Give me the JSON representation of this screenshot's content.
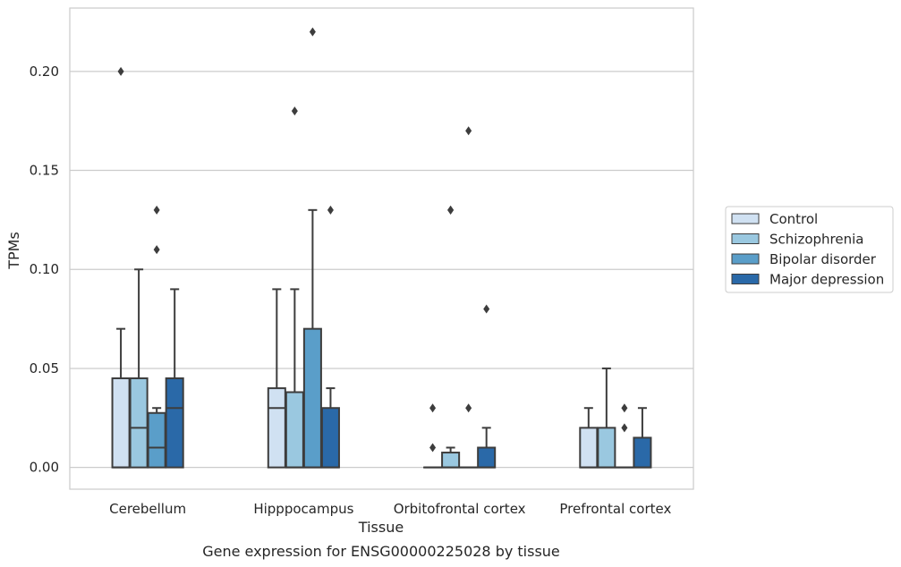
{
  "chart_data": {
    "type": "boxplot",
    "xlabel": "Tissue",
    "ylabel": "TPMs",
    "caption": "Gene expression for ENSG00000225028 by tissue",
    "ylim": [
      -0.011,
      0.232
    ],
    "yticks": [
      "0.00",
      "0.05",
      "0.10",
      "0.15",
      "0.20"
    ],
    "grid": "horizontal",
    "legend_position": "right",
    "categories": [
      "Cerebellum",
      "Hipppocampus",
      "Orbitofrontal cortex",
      "Prefrontal cortex"
    ],
    "series": [
      {
        "name": "Control",
        "color": "#d0e1f2",
        "boxes": [
          {
            "q1": 0.0,
            "median": 0.0,
            "q3": 0.045,
            "whisker_low": 0.0,
            "whisker_high": 0.07,
            "outliers": [
              0.2
            ]
          },
          {
            "q1": 0.0,
            "median": 0.03,
            "q3": 0.04,
            "whisker_low": 0.0,
            "whisker_high": 0.09,
            "outliers": []
          },
          {
            "q1": 0.0,
            "median": 0.0,
            "q3": 0.0,
            "whisker_low": 0.0,
            "whisker_high": 0.0,
            "outliers": [
              0.03,
              0.01
            ]
          },
          {
            "q1": 0.0,
            "median": 0.0,
            "q3": 0.02,
            "whisker_low": 0.0,
            "whisker_high": 0.03,
            "outliers": []
          }
        ]
      },
      {
        "name": "Schizophrenia",
        "color": "#9ac8e0",
        "boxes": [
          {
            "q1": 0.0,
            "median": 0.02,
            "q3": 0.045,
            "whisker_low": 0.0,
            "whisker_high": 0.1,
            "outliers": []
          },
          {
            "q1": 0.0,
            "median": 0.0,
            "q3": 0.038,
            "whisker_low": 0.0,
            "whisker_high": 0.09,
            "outliers": [
              0.18
            ]
          },
          {
            "q1": 0.0,
            "median": 0.0,
            "q3": 0.0075,
            "whisker_low": 0.0,
            "whisker_high": 0.01,
            "outliers": [
              0.13,
              0.13
            ]
          },
          {
            "q1": 0.0,
            "median": 0.0,
            "q3": 0.02,
            "whisker_low": 0.0,
            "whisker_high": 0.05,
            "outliers": []
          }
        ]
      },
      {
        "name": "Bipolar disorder",
        "color": "#5a9ec9",
        "boxes": [
          {
            "q1": 0.0,
            "median": 0.01,
            "q3": 0.0275,
            "whisker_low": 0.0,
            "whisker_high": 0.03,
            "outliers": [
              0.13,
              0.11
            ]
          },
          {
            "q1": 0.0,
            "median": 0.0,
            "q3": 0.07,
            "whisker_low": 0.0,
            "whisker_high": 0.13,
            "outliers": [
              0.22
            ]
          },
          {
            "q1": 0.0,
            "median": 0.0,
            "q3": 0.0,
            "whisker_low": 0.0,
            "whisker_high": 0.0,
            "outliers": [
              0.17,
              0.03
            ]
          },
          {
            "q1": 0.0,
            "median": 0.0,
            "q3": 0.0,
            "whisker_low": 0.0,
            "whisker_high": 0.0,
            "outliers": [
              0.03,
              0.02
            ]
          }
        ]
      },
      {
        "name": "Major depression",
        "color": "#2a69a8",
        "boxes": [
          {
            "q1": 0.0,
            "median": 0.03,
            "q3": 0.045,
            "whisker_low": 0.0,
            "whisker_high": 0.09,
            "outliers": []
          },
          {
            "q1": 0.0,
            "median": 0.0,
            "q3": 0.03,
            "whisker_low": 0.0,
            "whisker_high": 0.04,
            "outliers": [
              0.13
            ]
          },
          {
            "q1": 0.0,
            "median": 0.0,
            "q3": 0.01,
            "whisker_low": 0.0,
            "whisker_high": 0.02,
            "outliers": [
              0.08
            ]
          },
          {
            "q1": 0.0,
            "median": 0.0,
            "q3": 0.015,
            "whisker_low": 0.0,
            "whisker_high": 0.03,
            "outliers": []
          }
        ]
      }
    ]
  }
}
